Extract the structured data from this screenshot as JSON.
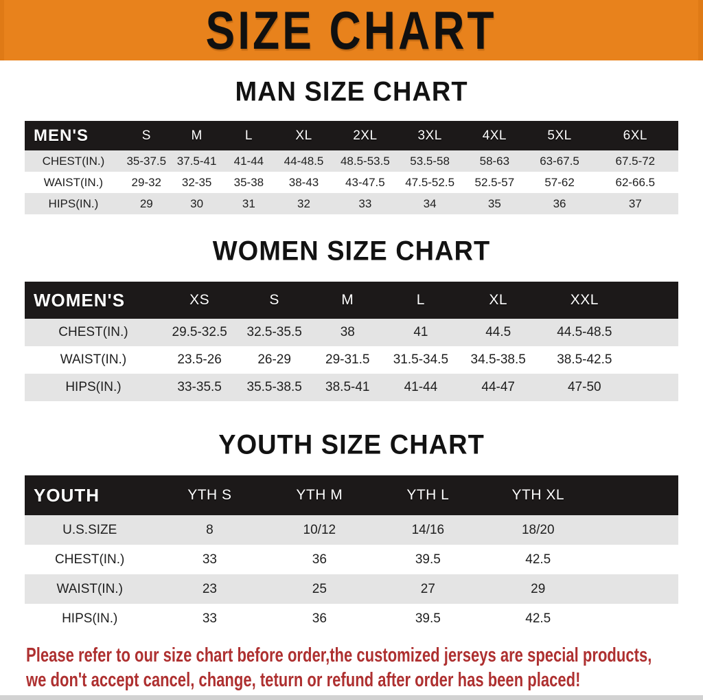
{
  "banner": {
    "title": "SIZE CHART"
  },
  "sections": [
    {
      "title": "MAN SIZE CHART",
      "table": {
        "header": [
          "MEN'S",
          "S",
          "M",
          "L",
          "XL",
          "2XL",
          "3XL",
          "4XL",
          "5XL",
          "6XL"
        ],
        "rows": [
          {
            "label": "CHEST(IN.)",
            "values": [
              "35-37.5",
              "37.5-41",
              "41-44",
              "44-48.5",
              "48.5-53.5",
              "53.5-58",
              "58-63",
              "63-67.5",
              "67.5-72"
            ]
          },
          {
            "label": "WAIST(IN.)",
            "values": [
              "29-32",
              "32-35",
              "35-38",
              "38-43",
              "43-47.5",
              "47.5-52.5",
              "52.5-57",
              "57-62",
              "62-66.5"
            ]
          },
          {
            "label": "HIPS(IN.)",
            "values": [
              "29",
              "30",
              "31",
              "32",
              "33",
              "34",
              "35",
              "36",
              "37"
            ]
          }
        ]
      }
    },
    {
      "title": "WOMEN SIZE CHART",
      "table": {
        "header": [
          "WOMEN'S",
          "XS",
          "S",
          "M",
          "L",
          "XL",
          "XXL"
        ],
        "rows": [
          {
            "label": "CHEST(IN.)",
            "values": [
              "29.5-32.5",
              "32.5-35.5",
              "38",
              "41",
              "44.5",
              "44.5-48.5"
            ]
          },
          {
            "label": "WAIST(IN.)",
            "values": [
              "23.5-26",
              "26-29",
              "29-31.5",
              "31.5-34.5",
              "34.5-38.5",
              "38.5-42.5"
            ]
          },
          {
            "label": "HIPS(IN.)",
            "values": [
              "33-35.5",
              "35.5-38.5",
              "38.5-41",
              "41-44",
              "44-47",
              "47-50"
            ]
          }
        ]
      }
    },
    {
      "title": "YOUTH SIZE CHART",
      "table": {
        "header": [
          "YOUTH",
          "YTH S",
          "YTH M",
          "YTH L",
          "YTH XL"
        ],
        "rows": [
          {
            "label": "U.S.SIZE",
            "values": [
              "8",
              "10/12",
              "14/16",
              "18/20"
            ]
          },
          {
            "label": "CHEST(IN.)",
            "values": [
              "33",
              "36",
              "39.5",
              "42.5"
            ]
          },
          {
            "label": "WAIST(IN.)",
            "values": [
              "23",
              "25",
              "27",
              "29"
            ]
          },
          {
            "label": "HIPS(IN.)",
            "values": [
              "33",
              "36",
              "39.5",
              "42.5"
            ]
          }
        ]
      }
    }
  ],
  "footer": {
    "line1": "Please refer to our size chart before order,the customized jerseys are special products,",
    "line2": "we don't accept cancel, change, teturn or refund after order has been placed!"
  },
  "colors": {
    "banner_orange": "#E8821C",
    "header_black": "#1C1919",
    "row_gray": "#E4E4E4",
    "footer_red": "#AE3030"
  }
}
